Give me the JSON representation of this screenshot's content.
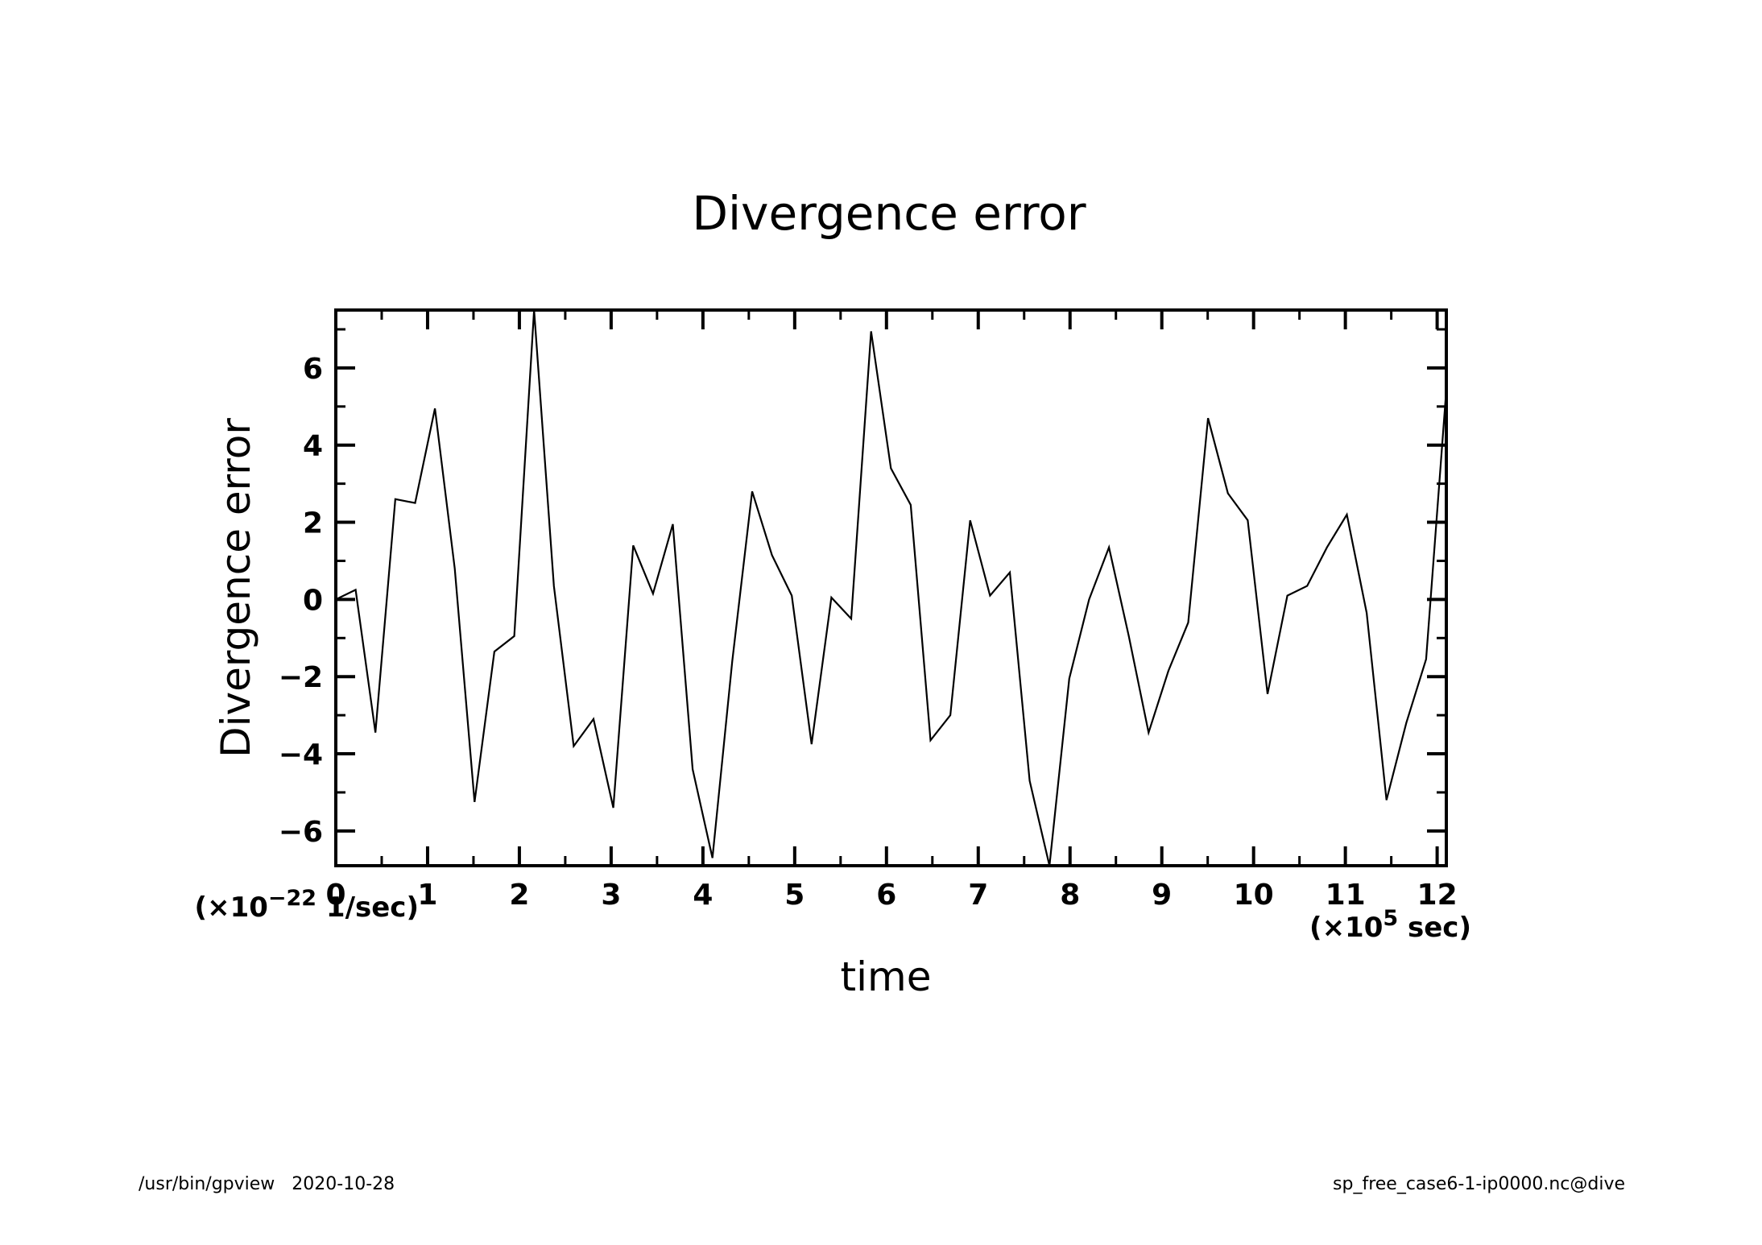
{
  "chart_data": {
    "type": "line",
    "title": "Divergence error",
    "xlabel": "time",
    "ylabel": "Divergence error",
    "x_unit_prefix": "(×10",
    "x_unit_exp": "5",
    "x_unit_suffix": " sec)",
    "y_unit_prefix": "(×10",
    "y_unit_exp": "−22",
    "y_unit_suffix": " 1/sec)",
    "xlim": [
      0,
      12.1
    ],
    "ylim": [
      -6.9,
      7.5
    ],
    "xticks": [
      0,
      1,
      2,
      3,
      4,
      5,
      6,
      7,
      8,
      9,
      10,
      11,
      12
    ],
    "xtick_labels": [
      "0",
      "1",
      "2",
      "3",
      "4",
      "5",
      "6",
      "7",
      "8",
      "9",
      "10",
      "11",
      "12"
    ],
    "yticks": [
      -6,
      -4,
      -2,
      0,
      2,
      4,
      6
    ],
    "ytick_labels": [
      "−6",
      "−4",
      "−2",
      "0",
      "2",
      "4",
      "6"
    ],
    "grid": false,
    "legend": "none",
    "line_color": "#000000",
    "series": [
      {
        "x": [
          0,
          0.216,
          0.432,
          0.648,
          0.864,
          1.08,
          1.296,
          1.512,
          1.728,
          1.944,
          2.16,
          2.376,
          2.592,
          2.808,
          3.024,
          3.24,
          3.456,
          3.672,
          3.888,
          4.104,
          4.32,
          4.536,
          4.752,
          4.968,
          5.184,
          5.4,
          5.616,
          5.832,
          6.048,
          6.264,
          6.48,
          6.696,
          6.912,
          7.128,
          7.344,
          7.56,
          7.776,
          7.992,
          8.208,
          8.424,
          8.64,
          8.856,
          9.072,
          9.288,
          9.504,
          9.72,
          9.936,
          10.152,
          10.368,
          10.584,
          10.8,
          11.016,
          11.232,
          11.448,
          11.664,
          11.88,
          12.096
        ],
        "values": [
          0,
          0.25,
          -3.45,
          2.6,
          2.5,
          4.95,
          0.8,
          -5.25,
          -1.35,
          -0.95,
          7.5,
          0.35,
          -3.8,
          -3.1,
          -5.4,
          1.4,
          0.15,
          1.95,
          -4.4,
          -6.7,
          -1.6,
          2.8,
          1.15,
          0.1,
          -3.75,
          0.05,
          -0.5,
          6.95,
          3.4,
          2.45,
          -3.65,
          -3.0,
          2.05,
          0.1,
          0.7,
          -4.7,
          -6.9,
          -2.05,
          0,
          1.35,
          -0.95,
          -3.45,
          -1.85,
          -0.6,
          4.7,
          2.75,
          2.05,
          -2.45,
          0.1,
          0.35,
          1.35,
          2.2,
          -0.35,
          -5.2,
          -3.2,
          -1.55,
          5.3
        ]
      }
    ]
  },
  "footer": {
    "left": "/usr/bin/gpview   2020-10-28",
    "right": "sp_free_case6-1-ip0000.nc@dive"
  }
}
